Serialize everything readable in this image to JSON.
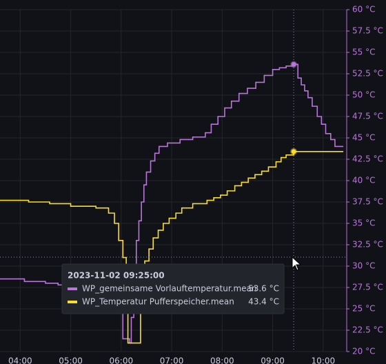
{
  "chart_data": {
    "type": "line",
    "step": true,
    "xlim": [
      216,
      628
    ],
    "xticks": [
      {
        "value": 240,
        "label": "04:00"
      },
      {
        "value": 300,
        "label": "05:00"
      },
      {
        "value": 360,
        "label": "06:00"
      },
      {
        "value": 420,
        "label": "07:00"
      },
      {
        "value": 480,
        "label": "08:00"
      },
      {
        "value": 540,
        "label": "09:00"
      },
      {
        "value": 600,
        "label": "10:00"
      }
    ],
    "ylim": [
      20,
      60
    ],
    "yticks": [
      {
        "value": 20,
        "label": "20 °C"
      },
      {
        "value": 22.5,
        "label": "22.5 °C"
      },
      {
        "value": 25,
        "label": "25 °C"
      },
      {
        "value": 27.5,
        "label": "27.5 °C"
      },
      {
        "value": 30,
        "label": "30 °C"
      },
      {
        "value": 32.5,
        "label": "32.5 °C"
      },
      {
        "value": 35,
        "label": "35 °C"
      },
      {
        "value": 37.5,
        "label": "37.5 °C"
      },
      {
        "value": 40,
        "label": "40 °C"
      },
      {
        "value": 42.5,
        "label": "42.5 °C"
      },
      {
        "value": 45,
        "label": "45 °C"
      },
      {
        "value": 47.5,
        "label": "47.5 °C"
      },
      {
        "value": 50,
        "label": "50 °C"
      },
      {
        "value": 52.5,
        "label": "52.5 °C"
      },
      {
        "value": 55,
        "label": "55 °C"
      },
      {
        "value": 57.5,
        "label": "57.5 °C"
      },
      {
        "value": 60,
        "label": "60 °C"
      }
    ],
    "grid": true,
    "axis_color": "#b877d9",
    "series": [
      {
        "name": "WP_gemeinsame Vorlauftemperatur.mean",
        "color": "#b877d9",
        "x": [
          216,
          230,
          245,
          270,
          285,
          350,
          362,
          370,
          372,
          375,
          378,
          381,
          384,
          387,
          390,
          395,
          400,
          405,
          415,
          430,
          445,
          460,
          467,
          475,
          483,
          491,
          500,
          510,
          520,
          530,
          540,
          548,
          556,
          565,
          570,
          574,
          578,
          582,
          587,
          593,
          598,
          603,
          609,
          614,
          624
        ],
        "values": [
          28.5,
          28.5,
          28.2,
          28.0,
          27.8,
          27.5,
          21.5,
          21,
          24,
          30,
          33,
          35.3,
          37.5,
          39.5,
          41,
          42.3,
          43.2,
          44,
          44.4,
          44.8,
          45.1,
          45.6,
          46.6,
          47.5,
          48.5,
          49.3,
          50.2,
          50.8,
          51.5,
          52.3,
          53,
          53.2,
          53.4,
          53.6,
          52,
          51.2,
          50.5,
          49.7,
          48.7,
          47.5,
          46.6,
          45.5,
          44.8,
          44,
          44
        ]
      },
      {
        "name": "WP_Temperatur Pufferspeicher.mean",
        "color": "#fade2a",
        "x": [
          216,
          250,
          275,
          300,
          330,
          345,
          352,
          357,
          362,
          366,
          368,
          375,
          383,
          388,
          393,
          398,
          404,
          410,
          417,
          425,
          432,
          445,
          462,
          470,
          478,
          486,
          495,
          503,
          511,
          519,
          527,
          535,
          544,
          550,
          556,
          565,
          624
        ],
        "values": [
          37.7,
          37.5,
          37.3,
          37.0,
          36.8,
          36.2,
          35.0,
          33.0,
          31.0,
          29.5,
          21,
          21,
          28,
          30.6,
          32,
          33.3,
          34.2,
          35,
          35.6,
          36.2,
          36.8,
          37.3,
          37.7,
          38,
          38.3,
          38.8,
          39.4,
          39.8,
          40.3,
          40.7,
          41.1,
          41.6,
          42.2,
          42.7,
          43,
          43.4,
          43.4
        ]
      }
    ],
    "tooltip": {
      "title": "2023-11-02 09:25:00",
      "x": 565,
      "value_labels": [
        "53.6 °C",
        "43.4 °C"
      ]
    }
  }
}
